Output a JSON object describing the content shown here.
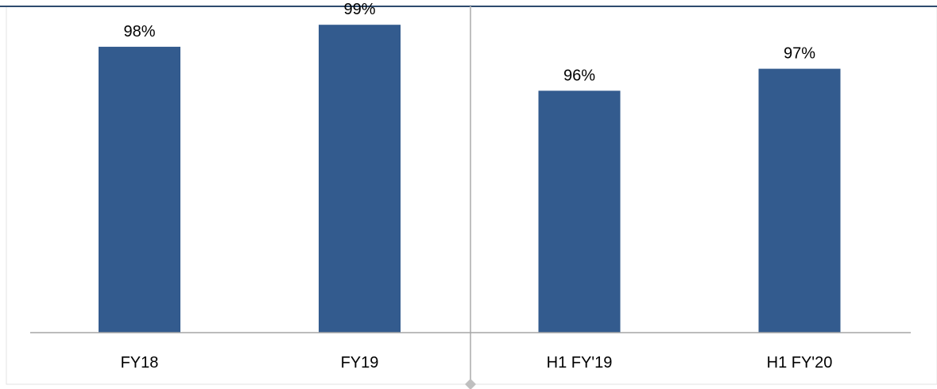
{
  "chart_data": {
    "type": "bar",
    "categories": [
      "FY18",
      "FY19",
      "H1 FY'19",
      "H1 FY'20"
    ],
    "values": [
      98,
      99,
      96,
      97
    ],
    "value_labels": [
      "98%",
      "99%",
      "96%",
      "97%"
    ],
    "title": "",
    "xlabel": "",
    "ylabel": "",
    "ylim": [
      85,
      101
    ],
    "grid": false,
    "legend": "none",
    "colors": {
      "bar": "#335B8E",
      "top_rule": "#2E4B6E",
      "axis": "#A6A6A6",
      "divider": "#BFBFBF",
      "frame": "#E3E3E3"
    }
  }
}
